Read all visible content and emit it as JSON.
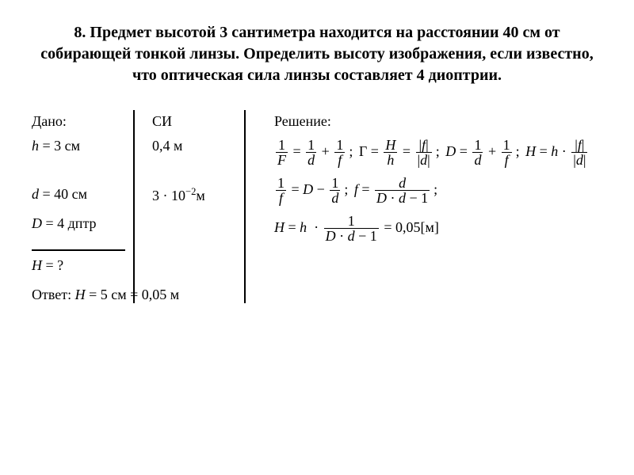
{
  "title": "8. Предмет высотой 3 сантиметра находится на расстоянии 40 см от собирающей тонкой линзы. Определить высоту изображения, если известно, что оптическая сила линзы составляет 4 диоптрии.",
  "given": {
    "heading": "Дано:",
    "h": "h = 3 см",
    "d": "d = 40 см",
    "D": "D = 4 дптр",
    "question": "H = ?"
  },
  "si": {
    "heading": "СИ",
    "d_si": "0,4 м",
    "h_si": "3 · 10⁻² м"
  },
  "solution": {
    "heading": "Решение:"
  },
  "answer_prefix": "Ответ: ",
  "answer_value": "H = 5 см = 0,05 м"
}
